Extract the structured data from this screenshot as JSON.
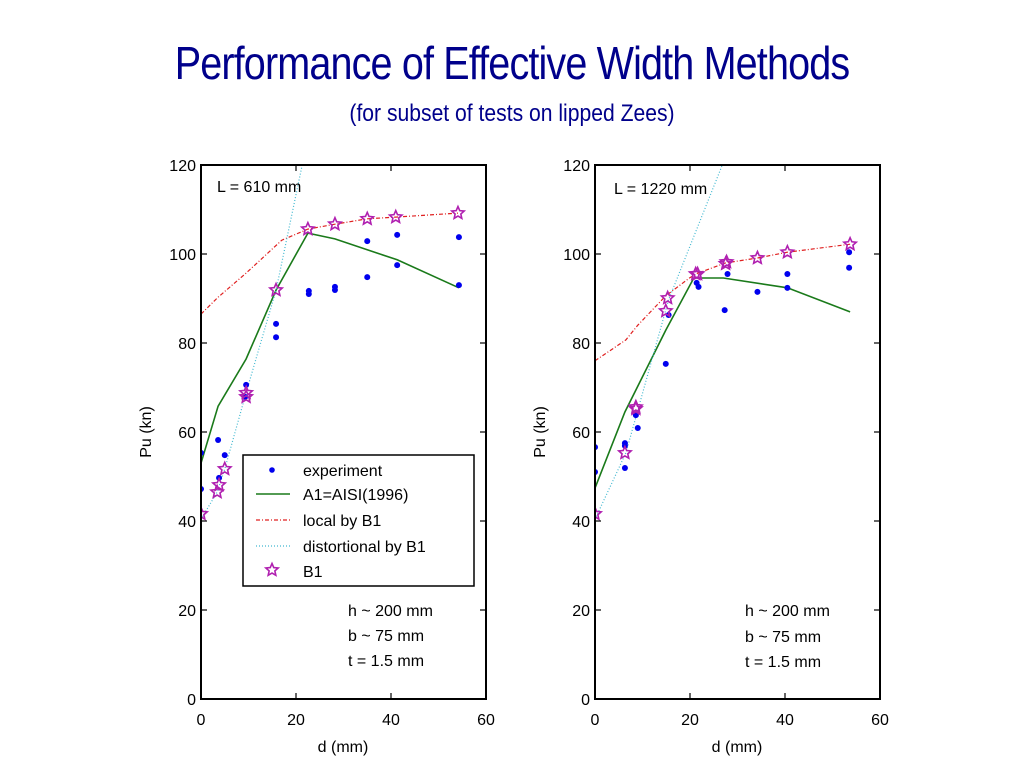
{
  "title": "Performance of Effective Width Methods",
  "subtitle": "(for subset of tests on lipped Zees)",
  "colors": {
    "title": "#00008b",
    "experiment": "#0000ee",
    "aisi": "#1a7a1a",
    "local": "#e02020",
    "distortional": "#40b8d0",
    "b1": "#b020b0",
    "axis": "#000000"
  },
  "legend": {
    "entries": [
      {
        "key": "experiment",
        "label": "experiment"
      },
      {
        "key": "aisi",
        "label": "A1=AISI(1996)"
      },
      {
        "key": "local",
        "label": "local by B1"
      },
      {
        "key": "distortional",
        "label": "distortional by B1"
      },
      {
        "key": "b1",
        "label": "B1"
      }
    ]
  },
  "chart_data": [
    {
      "type": "line",
      "annotation": "L = 610 mm",
      "notes": [
        "h ~ 200 mm",
        "b ~ 75 mm",
        "t = 1.5 mm"
      ],
      "xlabel": "d (mm)",
      "ylabel": "Pu (kn)",
      "xlim": [
        0,
        60
      ],
      "ylim": [
        0,
        120
      ],
      "xticks": [
        0,
        20,
        40,
        60
      ],
      "yticks": [
        0,
        20,
        40,
        60,
        80,
        100,
        120
      ],
      "grid": false,
      "legend_position": "lower-center",
      "series": [
        {
          "name": "experiment",
          "kind": "scatter",
          "x": [
            0,
            0,
            3.6,
            3.8,
            5.0,
            9.5,
            9.3,
            15.8,
            15.8,
            22.7,
            22.7,
            28.2,
            28.2,
            35.0,
            35.0,
            41.3,
            41.3,
            54.3,
            54.3
          ],
          "y": [
            55.3,
            47.2,
            58.2,
            49.7,
            54.8,
            70.6,
            67.9,
            84.3,
            81.3,
            91.7,
            91.0,
            92.6,
            91.9,
            94.8,
            102.9,
            97.5,
            104.3,
            93.0,
            103.8
          ]
        },
        {
          "name": "A1=AISI(1996)",
          "kind": "line",
          "x": [
            0,
            3.6,
            9.5,
            15.8,
            22.5,
            28.2,
            41.3,
            54.3
          ],
          "y": [
            53.0,
            65.8,
            76.4,
            91.9,
            104.7,
            103.4,
            98.7,
            92.4
          ]
        },
        {
          "name": "local by B1",
          "kind": "line",
          "x": [
            0,
            3.6,
            9.5,
            17.0,
            22.5,
            28.2,
            35.0,
            41.0,
            54.1
          ],
          "y": [
            86.5,
            90.3,
            95.7,
            103.1,
            105.6,
            106.7,
            107.9,
            108.3,
            109.2
          ]
        },
        {
          "name": "distortional by B1",
          "kind": "line",
          "x": [
            0,
            3.4,
            5.0,
            9.5,
            15.8,
            21.3
          ],
          "y": [
            40.4,
            46.5,
            51.7,
            68.8,
            91.9,
            120
          ]
        },
        {
          "name": "B1",
          "kind": "scatter",
          "x": [
            0,
            3.4,
            3.8,
            5.0,
            9.5,
            9.5,
            15.8,
            22.5,
            28.2,
            35.0,
            41.0,
            54.1
          ],
          "y": [
            41.6,
            46.5,
            48.1,
            51.7,
            68.8,
            67.9,
            91.9,
            105.6,
            106.7,
            107.9,
            108.3,
            109.2
          ]
        }
      ]
    },
    {
      "type": "line",
      "annotation": "L = 1220 mm",
      "notes": [
        "h ~ 200 mm",
        "b ~ 75 mm",
        "t = 1.5 mm"
      ],
      "xlabel": "d (mm)",
      "ylabel": "Pu (kn)",
      "xlim": [
        0,
        60
      ],
      "ylim": [
        0,
        120
      ],
      "xticks": [
        0,
        20,
        40,
        60
      ],
      "yticks": [
        0,
        20,
        40,
        60,
        80,
        100,
        120
      ],
      "grid": false,
      "series": [
        {
          "name": "experiment",
          "kind": "scatter",
          "x": [
            0,
            0,
            6.3,
            6.3,
            6.3,
            8.6,
            9.0,
            14.9,
            15.5,
            21.4,
            21.8,
            27.9,
            27.3,
            34.2,
            40.5,
            40.5,
            53.5,
            53.5
          ],
          "y": [
            56.6,
            51.0,
            57.5,
            56.9,
            51.9,
            63.8,
            60.9,
            75.3,
            86.3,
            93.5,
            92.6,
            95.5,
            87.4,
            91.5,
            95.5,
            92.4,
            100.4,
            96.9
          ]
        },
        {
          "name": "A1=AISI(1996)",
          "kind": "line",
          "x": [
            0,
            6.3,
            14.9,
            20.8,
            27.0,
            40.5,
            53.7
          ],
          "y": [
            47.4,
            64.5,
            82.9,
            94.6,
            94.6,
            92.4,
            87.0
          ]
        },
        {
          "name": "local by B1",
          "kind": "line",
          "x": [
            0,
            6.5,
            9.0,
            14.9,
            19.9,
            21.2,
            27.5,
            34.2,
            40.5,
            53.7
          ],
          "y": [
            76.0,
            80.7,
            84.0,
            90.6,
            94.6,
            95.5,
            98.0,
            99.1,
            100.4,
            102.2
          ]
        },
        {
          "name": "distortional by B1",
          "kind": "line",
          "x": [
            0,
            6.5,
            15.5,
            26.8
          ],
          "y": [
            40.4,
            55.3,
            89.7,
            120
          ]
        },
        {
          "name": "B1",
          "kind": "scatter",
          "x": [
            0,
            6.3,
            8.6,
            8.6,
            14.9,
            15.3,
            21.2,
            21.6,
            27.5,
            27.7,
            34.2,
            40.5,
            53.7
          ],
          "y": [
            41.6,
            55.3,
            65.6,
            65.2,
            87.2,
            90.1,
            95.5,
            95.5,
            97.8,
            98.2,
            99.1,
            100.4,
            102.2
          ]
        }
      ]
    }
  ]
}
